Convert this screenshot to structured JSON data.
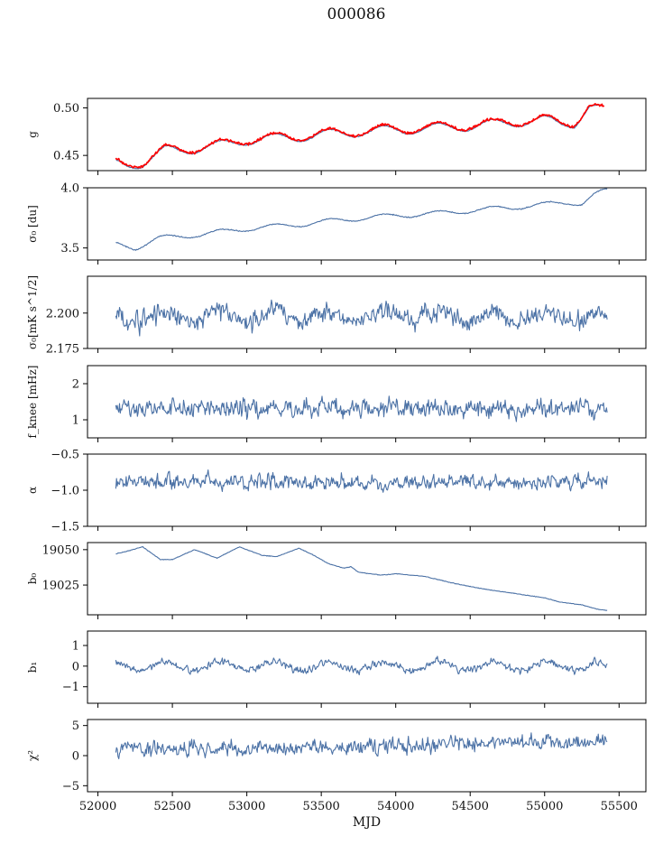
{
  "title": "000086",
  "colors": {
    "main_line": "#4c72a6",
    "obs_line": "#ff0000",
    "axis": "#000000"
  },
  "x_axis": {
    "label": "MJD",
    "range": [
      51930,
      55680
    ],
    "ticks": [
      52000,
      52500,
      53000,
      53500,
      54000,
      54500,
      55000,
      55500
    ],
    "tick_labels": [
      "52000",
      "52500",
      "53000",
      "53500",
      "54000",
      "54500",
      "55000",
      "55500"
    ]
  },
  "chart_data": [
    {
      "type": "line",
      "ylabel": "g",
      "ylim": [
        0.434,
        0.51
      ],
      "yticks": [
        0.45,
        0.5
      ],
      "ytick_labels": [
        "0.45",
        "0.50"
      ],
      "series": [
        {
          "color": "#4c72a6",
          "kind": "trend",
          "x": [
            52120,
            52200,
            52300,
            52450,
            52600,
            52800,
            53000,
            53200,
            53400,
            53600,
            53800,
            54000,
            54200,
            54400,
            54600,
            54800,
            55000,
            55100,
            55200,
            55300,
            55400
          ],
          "y": [
            0.441,
            0.44,
            0.442,
            0.455,
            0.456,
            0.46,
            0.466,
            0.468,
            0.47,
            0.473,
            0.475,
            0.477,
            0.478,
            0.48,
            0.482,
            0.485,
            0.487,
            0.484,
            0.484,
            0.5,
            0.497
          ],
          "amp": 0.005,
          "period": 365,
          "noise": 0.0004
        },
        {
          "color": "#ff0000",
          "kind": "trend",
          "x": [
            52120,
            52200,
            52300,
            52450,
            52600,
            52800,
            53000,
            53200,
            53400,
            53600,
            53800,
            54000,
            54200,
            54400,
            54600,
            54800,
            55000,
            55100,
            55200,
            55300,
            55400
          ],
          "y": [
            0.442,
            0.441,
            0.443,
            0.456,
            0.457,
            0.461,
            0.467,
            0.469,
            0.471,
            0.474,
            0.476,
            0.478,
            0.479,
            0.481,
            0.483,
            0.486,
            0.488,
            0.485,
            0.485,
            0.501,
            0.497
          ],
          "amp": 0.005,
          "period": 365,
          "noise": 0.0009
        }
      ]
    },
    {
      "type": "line",
      "ylabel": "σ₀ [du]",
      "ylim": [
        3.4,
        4.0
      ],
      "yticks": [
        3.5,
        4.0
      ],
      "ytick_labels": [
        "3.5",
        "4.0"
      ],
      "series": [
        {
          "color": "#4c72a6",
          "kind": "trend",
          "x": [
            52120,
            52250,
            52400,
            52600,
            52800,
            53000,
            53200,
            53400,
            53600,
            53800,
            54000,
            54200,
            54400,
            54600,
            54800,
            55000,
            55150,
            55250,
            55350,
            55420
          ],
          "y": [
            3.53,
            3.5,
            3.58,
            3.6,
            3.63,
            3.66,
            3.68,
            3.7,
            3.73,
            3.75,
            3.77,
            3.78,
            3.8,
            3.82,
            3.84,
            3.86,
            3.88,
            3.87,
            3.95,
            3.98
          ],
          "amp": 0.02,
          "period": 365,
          "noise": 0.003
        }
      ]
    },
    {
      "type": "line",
      "ylabel": "σ₀[mK s^1/2]",
      "ylim": [
        2.175,
        2.226
      ],
      "yticks": [
        2.175,
        2.2
      ],
      "ytick_labels": [
        "2.175",
        "2.200"
      ],
      "series": [
        {
          "color": "#4c72a6",
          "kind": "noise",
          "x": [
            52120,
            55420
          ],
          "y": [
            2.198,
            2.197
          ],
          "amp": 0.004,
          "period": 365,
          "noise": 0.0045
        }
      ]
    },
    {
      "type": "line",
      "ylabel": "f_knee [mHz]",
      "ylim": [
        0.5,
        2.5
      ],
      "yticks": [
        1,
        2
      ],
      "ytick_labels": [
        "1",
        "2"
      ],
      "series": [
        {
          "color": "#4c72a6",
          "kind": "noise",
          "x": [
            52120,
            55420
          ],
          "y": [
            1.33,
            1.28
          ],
          "amp": 0.0,
          "period": 365,
          "noise": 0.17
        }
      ]
    },
    {
      "type": "line",
      "ylabel": "α",
      "ylim": [
        -1.5,
        -0.5
      ],
      "yticks": [
        -1.5,
        -1.0,
        -0.5
      ],
      "ytick_labels": [
        "−1.5",
        "−1.0",
        "−0.5"
      ],
      "series": [
        {
          "color": "#4c72a6",
          "kind": "noise",
          "x": [
            52120,
            55420
          ],
          "y": [
            -0.89,
            -0.89
          ],
          "amp": 0.0,
          "period": 365,
          "noise": 0.07
        }
      ]
    },
    {
      "type": "line",
      "ylabel": "b₀",
      "ylim": [
        19004,
        19055
      ],
      "yticks": [
        19025,
        19050
      ],
      "ytick_labels": [
        "19025",
        "19050"
      ],
      "series": [
        {
          "color": "#4c72a6",
          "kind": "trend",
          "x": [
            52120,
            52200,
            52300,
            52420,
            52500,
            52650,
            52800,
            52950,
            53100,
            53200,
            53350,
            53450,
            53550,
            53650,
            53700,
            53750,
            53900,
            54000,
            54200,
            54400,
            54600,
            54800,
            55000,
            55100,
            55250,
            55350,
            55420
          ],
          "y": [
            19047,
            19049,
            19052,
            19043,
            19043,
            19050,
            19044,
            19052,
            19046,
            19045,
            19051,
            19046,
            19040,
            19037,
            19038,
            19034,
            19032,
            19033,
            19031,
            19026,
            19022,
            19019,
            19016,
            19013,
            19011,
            19008,
            19007
          ],
          "amp": 0.0,
          "period": 365,
          "noise": 0.15
        }
      ]
    },
    {
      "type": "line",
      "ylabel": "b₁",
      "ylim": [
        -1.8,
        1.7
      ],
      "yticks": [
        -1,
        0,
        1
      ],
      "ytick_labels": [
        "−1",
        "0",
        "1"
      ],
      "series": [
        {
          "color": "#4c72a6",
          "kind": "noise",
          "x": [
            52120,
            55420
          ],
          "y": [
            0.0,
            0.0
          ],
          "amp": 0.2,
          "period": 365,
          "noise": 0.12
        }
      ]
    },
    {
      "type": "line",
      "ylabel": "χ²",
      "ylim": [
        -6,
        6
      ],
      "yticks": [
        -5,
        0,
        5
      ],
      "ytick_labels": [
        "−5",
        "0",
        "5"
      ],
      "series": [
        {
          "color": "#4c72a6",
          "kind": "noise",
          "x": [
            52120,
            55420
          ],
          "y": [
            0.9,
            2.3
          ],
          "amp": 0.0,
          "period": 365,
          "noise": 0.85
        }
      ]
    }
  ]
}
